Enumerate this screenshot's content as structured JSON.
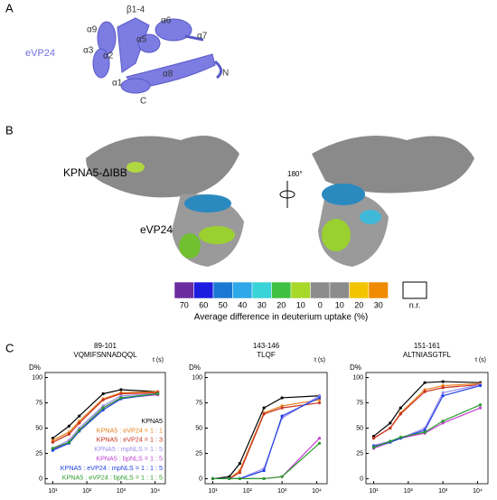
{
  "panel_a": {
    "label": "A",
    "name": "eVP24",
    "annotations": [
      "β1-4",
      "α6",
      "α9",
      "α5",
      "α7",
      "α3",
      "α2",
      "α1",
      "α8",
      "C",
      "N"
    ]
  },
  "panel_b": {
    "label": "B",
    "complex": "KPNA5-ΔIBB",
    "name": "eVP24",
    "rotation": "180°",
    "scale": {
      "labels": [
        70,
        60,
        50,
        40,
        30,
        20,
        10,
        0,
        10,
        20,
        30
      ],
      "colors": [
        "#6a2c9e",
        "#1c1ce0",
        "#1a78d2",
        "#2ca8e8",
        "#38d4d8",
        "#40c040",
        "#a8d828",
        "#8c8c8c",
        "#8c8c8c",
        "#f2c400",
        "#f08a00"
      ],
      "none": "n.r.",
      "caption": "Average difference in deuterium uptake (%)"
    }
  },
  "panel_c": {
    "label": "C"
  },
  "chart_data": [
    {
      "type": "line",
      "title": "89-101",
      "subtitle": "VQMIFSNNADQQL",
      "ylabel": "D%",
      "xlabel": "t (s)",
      "log_x": true,
      "x": [
        10,
        30,
        60,
        300,
        1000,
        12000
      ],
      "xlim": [
        6,
        20000
      ],
      "xticks": [
        {
          "value": 10,
          "label": "10¹"
        },
        {
          "value": 100,
          "label": "10²"
        },
        {
          "value": 1000,
          "label": "10³"
        },
        {
          "value": 10000,
          "label": "10⁴"
        }
      ],
      "ylim": [
        -5,
        105
      ],
      "yticks": [
        0,
        25,
        50,
        75,
        100
      ],
      "series": [
        {
          "name": "KPNA5",
          "color": "#000000",
          "values": [
            40,
            52,
            62,
            84,
            88,
            86
          ]
        },
        {
          "name": "KPNA5 : eVP24 = 1 : 1",
          "color": "#e8801a",
          "values": [
            38,
            46,
            57,
            79,
            85,
            86
          ]
        },
        {
          "name": "KPNA5 : eVP24 = 1 : 3",
          "color": "#c83020",
          "values": [
            36,
            44,
            55,
            78,
            84,
            85
          ]
        },
        {
          "name": "KPNA5 : mpNLS = 1 : 5",
          "color": "#9a8cf0",
          "values": [
            30,
            38,
            50,
            72,
            82,
            84
          ]
        },
        {
          "name": "KPNA5 : bpNLS = 1 : 5",
          "color": "#c040d0",
          "values": [
            29,
            36,
            48,
            70,
            80,
            83
          ]
        },
        {
          "name": "KPNA5 : eVP24 : mpNLS = 1 : 1 : 5",
          "color": "#2040e0",
          "values": [
            28,
            35,
            47,
            68,
            79,
            84
          ]
        },
        {
          "name": "KPNA5 : eVP24 : bpNLS = 1 : 1 : 5",
          "color": "#2a9a2a",
          "values": [
            30,
            36,
            48,
            70,
            80,
            84
          ]
        }
      ]
    },
    {
      "type": "line",
      "title": "143-146",
      "subtitle": "TLQF",
      "ylabel": "D%",
      "xlabel": "t (s)",
      "log_x": true,
      "x": [
        10,
        30,
        60,
        300,
        1000,
        12000
      ],
      "xlim": [
        6,
        20000
      ],
      "xticks": [
        {
          "value": 10,
          "label": "10¹"
        },
        {
          "value": 100,
          "label": "10²"
        },
        {
          "value": 1000,
          "label": "10³"
        },
        {
          "value": 10000,
          "label": "10⁴"
        }
      ],
      "ylim": [
        -5,
        105
      ],
      "yticks": [
        0,
        25,
        50,
        75,
        100
      ],
      "series": [
        {
          "color": "#000000",
          "values": [
            0,
            2,
            15,
            70,
            80,
            82
          ]
        },
        {
          "color": "#e8801a",
          "values": [
            0,
            0,
            8,
            65,
            72,
            78
          ]
        },
        {
          "color": "#c83020",
          "values": [
            0,
            0,
            6,
            64,
            70,
            75
          ]
        },
        {
          "color": "#9a8cf0",
          "values": [
            0,
            0,
            0,
            10,
            60,
            82
          ]
        },
        {
          "color": "#c040d0",
          "values": [
            0,
            0,
            0,
            0,
            2,
            40
          ]
        },
        {
          "color": "#2040e0",
          "values": [
            0,
            0,
            0,
            8,
            62,
            80
          ]
        },
        {
          "color": "#2a9a2a",
          "values": [
            0,
            0,
            0,
            0,
            2,
            35
          ]
        }
      ]
    },
    {
      "type": "line",
      "title": "151-161",
      "subtitle": "ALTNIASGTFL",
      "ylabel": "D%",
      "xlabel": "t (s)",
      "log_x": true,
      "x": [
        10,
        30,
        60,
        300,
        1000,
        12000
      ],
      "xlim": [
        6,
        20000
      ],
      "xticks": [
        {
          "value": 10,
          "label": "10¹"
        },
        {
          "value": 100,
          "label": "10²"
        },
        {
          "value": 1000,
          "label": "10³"
        },
        {
          "value": 10000,
          "label": "10⁴"
        }
      ],
      "ylim": [
        -5,
        105
      ],
      "yticks": [
        0,
        25,
        50,
        75,
        100
      ],
      "series": [
        {
          "color": "#000000",
          "values": [
            42,
            55,
            70,
            95,
            96,
            95
          ]
        },
        {
          "color": "#e8801a",
          "values": [
            40,
            50,
            65,
            88,
            92,
            94
          ]
        },
        {
          "color": "#c83020",
          "values": [
            40,
            50,
            64,
            86,
            90,
            93
          ]
        },
        {
          "color": "#9a8cf0",
          "values": [
            33,
            37,
            40,
            50,
            85,
            93
          ]
        },
        {
          "color": "#c040d0",
          "values": [
            30,
            36,
            40,
            45,
            55,
            70
          ]
        },
        {
          "color": "#2040e0",
          "values": [
            32,
            36,
            40,
            48,
            82,
            92
          ]
        },
        {
          "color": "#2a9a2a",
          "values": [
            31,
            37,
            41,
            46,
            57,
            73
          ]
        }
      ]
    }
  ]
}
